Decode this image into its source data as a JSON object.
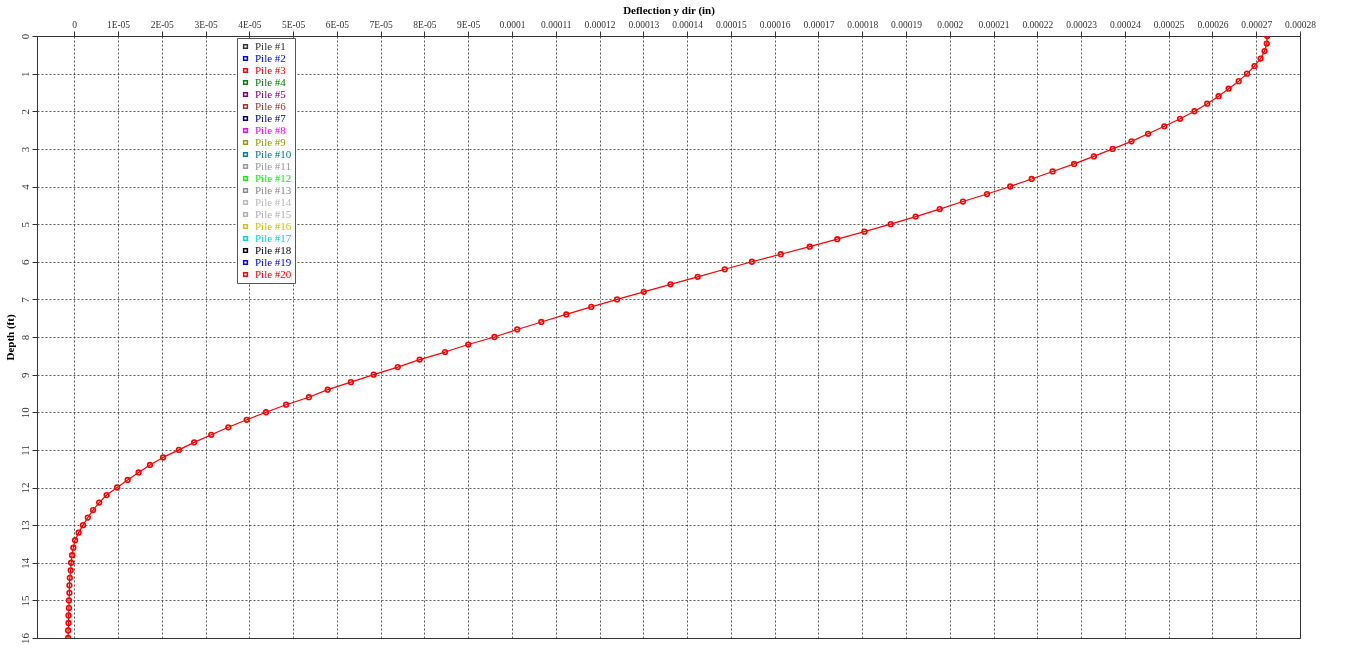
{
  "chart_data": {
    "type": "line",
    "xlabel": "Deflection y dir (in)",
    "ylabel": "Depth (ft)",
    "xlim": [
      -8.5e-06,
      0.00028
    ],
    "ylim": [
      16,
      0
    ],
    "xticks": [
      0,
      {
        "value": 1e-05,
        "label": "1E-05"
      },
      {
        "value": 2e-05,
        "label": "2E-05"
      },
      {
        "value": 3e-05,
        "label": "3E-05"
      },
      {
        "value": 4e-05,
        "label": "4E-05"
      },
      {
        "value": 5e-05,
        "label": "5E-05"
      },
      {
        "value": 6e-05,
        "label": "6E-05"
      },
      {
        "value": 7e-05,
        "label": "7E-05"
      },
      {
        "value": 8e-05,
        "label": "8E-05"
      },
      {
        "value": 9e-05,
        "label": "9E-05"
      },
      0.0001,
      0.00011,
      0.00012,
      0.00013,
      0.00014,
      0.00015,
      0.00016,
      0.00017,
      0.00018,
      0.00019,
      0.0002,
      0.00021,
      0.00022,
      0.00023,
      0.00024,
      0.00025,
      0.00026,
      0.00027,
      0.00028
    ],
    "yticks": [
      0,
      1,
      2,
      3,
      4,
      5,
      6,
      7,
      8,
      9,
      10,
      11,
      12,
      13,
      14,
      15,
      16
    ],
    "grid": true,
    "legend": "top left",
    "marker": "circle",
    "series": [
      {
        "name": "Pile #1",
        "color": "#333333"
      },
      {
        "name": "Pile #2",
        "color": "#0000ff"
      },
      {
        "name": "Pile #3",
        "color": "#ff0000"
      },
      {
        "name": "Pile #4",
        "color": "#008000"
      },
      {
        "name": "Pile #5",
        "color": "#800080"
      },
      {
        "name": "Pile #6",
        "color": "#993333"
      },
      {
        "name": "Pile #7",
        "color": "#000080"
      },
      {
        "name": "Pile #8",
        "color": "#ff00ff"
      },
      {
        "name": "Pile #9",
        "color": "#999900"
      },
      {
        "name": "Pile #10",
        "color": "#008080"
      },
      {
        "name": "Pile #11",
        "color": "#999999"
      },
      {
        "name": "Pile #12",
        "color": "#00ff00"
      },
      {
        "name": "Pile #13",
        "color": "#888888"
      },
      {
        "name": "Pile #14",
        "color": "#bbbbbb"
      },
      {
        "name": "Pile #15",
        "color": "#b0b0b0"
      },
      {
        "name": "Pile #16",
        "color": "#c8c800"
      },
      {
        "name": "Pile #17",
        "color": "#00d8d8"
      },
      {
        "name": "Pile #18",
        "color": "#000000"
      },
      {
        "name": "Pile #19",
        "color": "#0000ff"
      },
      {
        "name": "Pile #20",
        "color": "#ff0000",
        "x": [
          0.0002725,
          0.0002724,
          0.0002719,
          0.000271,
          0.0002696,
          0.0002679,
          0.000266,
          0.0002637,
          0.0002614,
          0.0002588,
          0.0002559,
          0.0002526,
          0.000249,
          0.0002453,
          0.0002415,
          0.0002372,
          0.0002329,
          0.0002284,
          0.0002235,
          0.0002187,
          0.0002138,
          0.0002085,
          0.000203,
          0.0001977,
          0.0001922,
          0.0001865,
          0.0001805,
          0.0001743,
          0.000168,
          0.0001614,
          0.0001548,
          0.0001486,
          0.0001424,
          0.0001362,
          0.0001301,
          0.000124,
          0.0001181,
          0.0001124,
          0.0001067,
          0.0001012,
          9.6e-05,
          9e-05,
          8.47e-05,
          7.89e-05,
          7.39e-05,
          6.84e-05,
          6.32e-05,
          5.79e-05,
          5.36e-05,
          4.84e-05,
          4.38e-05,
          3.94e-05,
          3.52e-05,
          3.13e-05,
          2.74e-05,
          2.39e-05,
          2.03e-05,
          1.73e-05,
          1.47e-05,
          1.22e-05,
          9.8e-06,
          7.4e-06,
          5.7e-06,
          4.3e-06,
          3.1e-06,
          2e-06,
          1e-06,
          2e-07,
          -2e-07,
          -5e-07,
          -7e-07,
          -8e-07,
          -1e-06,
          -1.1e-06,
          -1.1e-06,
          -1.2e-06,
          -1.2e-06,
          -1.3e-06,
          -1.3e-06,
          -1.4e-06,
          -1.4e-06
        ],
        "values": [
          0,
          0.2,
          0.4,
          0.6,
          0.8,
          1,
          1.2,
          1.4,
          1.6,
          1.8,
          2,
          2.2,
          2.4,
          2.6,
          2.8,
          3,
          3.2,
          3.4,
          3.6,
          3.8,
          4,
          4.2,
          4.4,
          4.6,
          4.8,
          5,
          5.2,
          5.4,
          5.6,
          5.8,
          6,
          6.2,
          6.4,
          6.6,
          6.8,
          7,
          7.2,
          7.4,
          7.6,
          7.8,
          8,
          8.2,
          8.4,
          8.6,
          8.8,
          9,
          9.2,
          9.4,
          9.6,
          9.8,
          10,
          10.2,
          10.4,
          10.6,
          10.8,
          11,
          11.2,
          11.4,
          11.6,
          11.8,
          12,
          12.2,
          12.4,
          12.6,
          12.8,
          13,
          13.2,
          13.4,
          13.6,
          13.8,
          14,
          14.2,
          14.4,
          14.6,
          14.8,
          15,
          15.2,
          15.4,
          15.6,
          15.8,
          16
        ]
      }
    ]
  }
}
